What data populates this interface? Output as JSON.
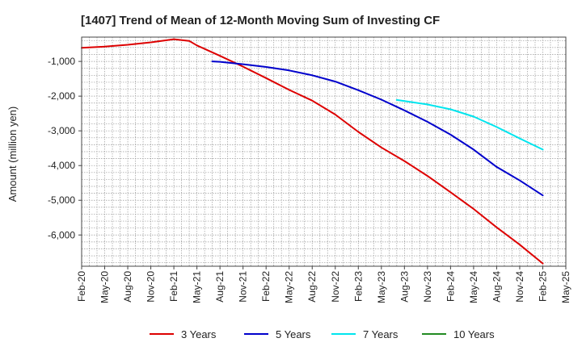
{
  "chart_data": {
    "type": "line",
    "title": "[1407]  Trend of Mean of 12-Month Moving Sum of Investing CF",
    "xlabel": "",
    "ylabel": "Amount (million yen)",
    "ylim": [
      -6900,
      -300
    ],
    "yticks": [
      -1000,
      -2000,
      -3000,
      -4000,
      -5000,
      -6000
    ],
    "ytick_labels": [
      "-1,000",
      "-2,000",
      "-3,000",
      "-4,000",
      "-5,000",
      "-6,000"
    ],
    "x_tick_labels": [
      "Feb-20",
      "May-20",
      "Aug-20",
      "Nov-20",
      "Feb-21",
      "May-21",
      "Aug-21",
      "Nov-21",
      "Feb-22",
      "May-22",
      "Aug-22",
      "Nov-22",
      "Feb-23",
      "May-23",
      "Aug-23",
      "Nov-23",
      "Feb-24",
      "May-24",
      "Aug-24",
      "Nov-24",
      "Feb-25",
      "May-25"
    ],
    "grid": true,
    "legend_position": "bottom",
    "series": [
      {
        "name": "3 Years",
        "color": "#dd0000",
        "x": [
          "Feb-20",
          "May-20",
          "Aug-20",
          "Nov-20",
          "Feb-21",
          "Apr-21",
          "May-21",
          "Aug-21",
          "Nov-21",
          "Feb-22",
          "May-22",
          "Aug-22",
          "Nov-22",
          "Feb-23",
          "May-23",
          "Aug-23",
          "Nov-23",
          "Feb-24",
          "May-24",
          "Aug-24",
          "Nov-24",
          "Feb-25"
        ],
        "values": [
          -610,
          -575,
          -520,
          -450,
          -360,
          -410,
          -540,
          -840,
          -1150,
          -1480,
          -1820,
          -2130,
          -2530,
          -3030,
          -3480,
          -3870,
          -4300,
          -4770,
          -5250,
          -5780,
          -6280,
          -6820
        ]
      },
      {
        "name": "5 Years",
        "color": "#0000cc",
        "x": [
          "Jul-21",
          "Aug-21",
          "Nov-21",
          "Feb-22",
          "May-22",
          "Aug-22",
          "Nov-22",
          "Feb-23",
          "May-23",
          "Aug-23",
          "Nov-23",
          "Feb-24",
          "May-24",
          "Aug-24",
          "Nov-24",
          "Feb-25"
        ],
        "values": [
          -1000,
          -1010,
          -1080,
          -1160,
          -1260,
          -1400,
          -1580,
          -1830,
          -2100,
          -2410,
          -2740,
          -3110,
          -3540,
          -4040,
          -4430,
          -4860
        ]
      },
      {
        "name": "7 Years",
        "color": "#00e5ee",
        "x": [
          "Jul-23",
          "Aug-23",
          "Nov-23",
          "Feb-24",
          "May-24",
          "Aug-24",
          "Nov-24",
          "Feb-25"
        ],
        "values": [
          -2110,
          -2140,
          -2240,
          -2380,
          -2590,
          -2890,
          -3220,
          -3540
        ]
      },
      {
        "name": "10 Years",
        "color": "#228b22",
        "x": [],
        "values": []
      }
    ]
  }
}
